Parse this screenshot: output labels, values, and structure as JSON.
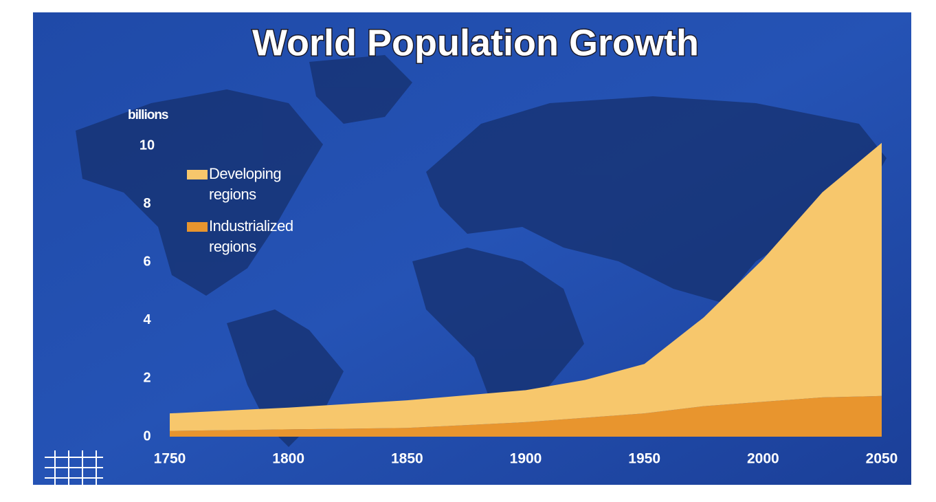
{
  "chart_data": {
    "type": "stacked-area",
    "title": "World Population Growth",
    "y_label": "billions",
    "x": [
      1750,
      1800,
      1850,
      1900,
      1925,
      1950,
      1975,
      2000,
      2025,
      2050
    ],
    "series": [
      {
        "name": "Industrialized regions",
        "color": "#e8952e",
        "values": [
          0.2,
          0.25,
          0.3,
          0.5,
          0.65,
          0.8,
          1.05,
          1.2,
          1.35,
          1.4
        ]
      },
      {
        "name": "Developing regions",
        "color": "#f7c76c",
        "values": [
          0.6,
          0.75,
          0.95,
          1.1,
          1.3,
          1.7,
          3.05,
          4.9,
          7.05,
          8.7
        ]
      }
    ],
    "xlim": [
      1750,
      2050
    ],
    "xticks": [
      1750,
      1800,
      1850,
      1900,
      1950,
      2000,
      2050
    ],
    "ylim": [
      0,
      10
    ],
    "yticks": [
      0,
      2,
      4,
      6,
      8,
      10
    ]
  }
}
